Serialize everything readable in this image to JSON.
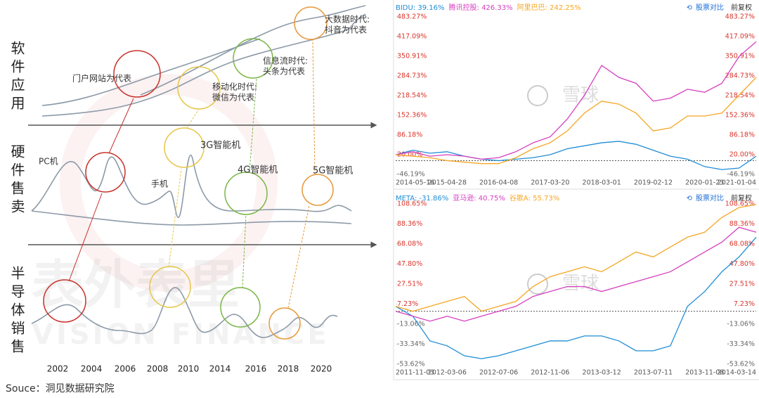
{
  "diagram": {
    "rows": [
      "软件应用",
      "硬件售卖",
      "半导体销售"
    ],
    "years": [
      "2002",
      "2004",
      "2006",
      "2008",
      "2010",
      "2014",
      "2016",
      "2018",
      "2020"
    ],
    "software_notes": [
      "门户网站为代表",
      "移动化时代:",
      "微信为代表",
      "信息流时代:",
      "头条为代表",
      "大数据时代:",
      "抖音为代表"
    ],
    "hardware_notes": [
      "PC机",
      "手机",
      "3G智能机",
      "4G智能机",
      "5G智能机"
    ],
    "watermark": [
      "表外表里",
      "VISION FINANCE"
    ],
    "source": "Souce：洞见数据研究院"
  },
  "chart_data": [
    {
      "type": "line",
      "toolbar": [
        "股票对比",
        "前复权"
      ],
      "watermark": "雪球",
      "categories": [
        "2014-05-16",
        null,
        null,
        "2015-04-28",
        null,
        null,
        "2016-04-08",
        null,
        null,
        "2017-03-20",
        null,
        null,
        "2018-03-01",
        null,
        null,
        "2019-02-12",
        null,
        null,
        "2020-01-23",
        null,
        null,
        "2021-01-04"
      ],
      "series": [
        {
          "name": "BIDU: 39.16%",
          "color": "#1f8dd6",
          "values": [
            20,
            35,
            25,
            30,
            15,
            5,
            0,
            5,
            10,
            20,
            40,
            50,
            60,
            65,
            55,
            35,
            15,
            5,
            -20,
            -30,
            -25,
            15
          ]
        },
        {
          "name": "腾讯控股: 426.33%",
          "color": "#d63fbf",
          "values": [
            20,
            30,
            15,
            20,
            15,
            5,
            10,
            30,
            60,
            80,
            140,
            220,
            320,
            280,
            260,
            200,
            210,
            240,
            230,
            260,
            350,
            400
          ]
        },
        {
          "name": "阿里巴巴: 242.25%",
          "color": "#f5a623",
          "values": [
            20,
            15,
            10,
            0,
            -5,
            -10,
            -10,
            10,
            40,
            60,
            100,
            160,
            200,
            190,
            160,
            100,
            110,
            150,
            150,
            160,
            220,
            280
          ]
        }
      ],
      "ylim": [
        -46.19,
        483.27
      ],
      "yticks": [
        {
          "value": 483.27,
          "label": "483.27%"
        },
        {
          "value": 417.09,
          "label": "417.09%"
        },
        {
          "value": 350.91,
          "label": "350.91%"
        },
        {
          "value": 284.73,
          "label": "284.73%"
        },
        {
          "value": 218.54,
          "label": "218.54%"
        },
        {
          "value": 152.36,
          "label": "152.36%"
        },
        {
          "value": 86.18,
          "label": "86.18%"
        },
        {
          "value": 20.0,
          "label": "20.00%"
        },
        {
          "value": -46.19,
          "label": "-46.19%"
        }
      ]
    },
    {
      "type": "line",
      "toolbar": [
        "股票对比",
        "前复权"
      ],
      "watermark": "雪球",
      "categories": [
        "2011-11-03",
        null,
        null,
        "2012-03-06",
        null,
        null,
        "2012-07-06",
        null,
        null,
        "2012-11-06",
        null,
        null,
        "2013-03-12",
        null,
        null,
        "2013-07-11",
        null,
        null,
        "2013-11-08",
        null,
        null,
        "2014-03-14"
      ],
      "series": [
        {
          "name": "META: -31.86%",
          "color": "#1f8dd6",
          "values": [
            5,
            -5,
            -30,
            -35,
            -45,
            -48,
            -45,
            -40,
            -35,
            -30,
            -30,
            -25,
            -25,
            -30,
            -40,
            -40,
            -35,
            5,
            20,
            40,
            55,
            75
          ]
        },
        {
          "name": "亚马逊: 40.75%",
          "color": "#d63fbf",
          "values": [
            0,
            -5,
            -10,
            -5,
            -10,
            -5,
            0,
            5,
            15,
            20,
            25,
            25,
            20,
            25,
            30,
            35,
            40,
            50,
            60,
            70,
            85,
            80
          ]
        },
        {
          "name": "谷歌A: 55.73%",
          "color": "#f5a623",
          "values": [
            5,
            0,
            5,
            10,
            15,
            0,
            5,
            10,
            25,
            35,
            40,
            45,
            40,
            50,
            60,
            55,
            65,
            75,
            80,
            95,
            105,
            108
          ]
        }
      ],
      "ylim": [
        -53.62,
        108.65
      ],
      "yticks": [
        {
          "value": 108.65,
          "label": "108.65%"
        },
        {
          "value": 88.36,
          "label": "88.36%"
        },
        {
          "value": 68.08,
          "label": "68.08%"
        },
        {
          "value": 47.8,
          "label": "47.80%"
        },
        {
          "value": 27.51,
          "label": "27.51%"
        },
        {
          "value": 7.23,
          "label": "7.23%"
        },
        {
          "value": -13.06,
          "label": "-13.06%"
        },
        {
          "value": -33.34,
          "label": "-33.34%"
        },
        {
          "value": -53.62,
          "label": "-53.62%"
        }
      ]
    }
  ]
}
